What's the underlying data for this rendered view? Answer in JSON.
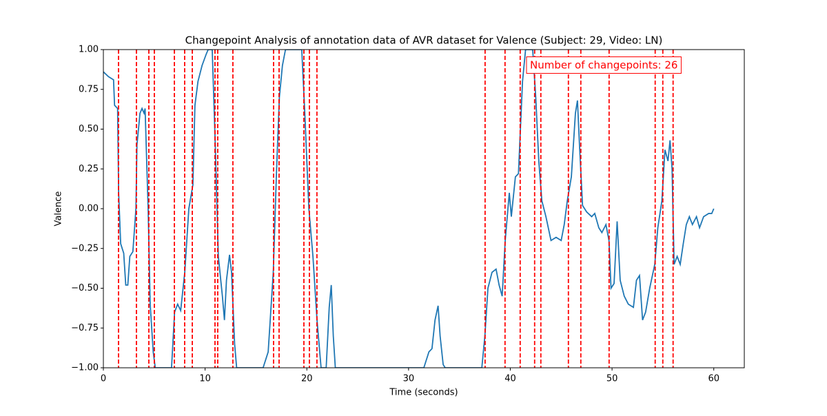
{
  "chart_data": {
    "type": "line",
    "title": "Changepoint Analysis of annotation data of AVR dataset for Valence (Subject: 29, Video: LN)",
    "xlabel": "Time (seconds)",
    "ylabel": "Valence",
    "xlim": [
      0,
      63
    ],
    "xticks": [
      0,
      10,
      20,
      30,
      40,
      50,
      60
    ],
    "ylim": [
      -1,
      1
    ],
    "yticks": [
      {
        "value": -1,
        "label": "−1.00"
      },
      {
        "value": -0.75,
        "label": "−0.75"
      },
      {
        "value": -0.5,
        "label": "−0.50"
      },
      {
        "value": -0.25,
        "label": "−0.25"
      },
      {
        "value": 0,
        "label": "0.00"
      },
      {
        "value": 0.25,
        "label": "0.25"
      },
      {
        "value": 0.5,
        "label": "0.50"
      },
      {
        "value": 0.75,
        "label": "0.75"
      },
      {
        "value": 1,
        "label": "1.00"
      }
    ],
    "x": [
      0,
      0.5,
      1.0,
      1.1,
      1.4,
      1.5,
      1.7,
      2.0,
      2.2,
      2.4,
      2.6,
      2.9,
      3.2,
      3.3,
      3.6,
      3.8,
      4.0,
      4.1,
      4.4,
      4.6,
      4.9,
      5.1,
      6.7,
      7.0,
      7.3,
      7.6,
      8.0,
      8.4,
      8.8,
      9.0,
      9.3,
      9.7,
      10.1,
      10.3,
      10.7,
      11.0,
      11.3,
      11.7,
      11.9,
      12.1,
      12.4,
      12.6,
      12.9,
      13.1,
      15.7,
      16.2,
      16.7,
      17.0,
      17.3,
      17.6,
      17.9,
      19.5,
      19.8,
      20.2,
      20.6,
      21.0,
      21.4,
      21.9,
      22.2,
      22.4,
      22.6,
      22.8,
      31.5,
      32.0,
      32.3,
      32.6,
      32.9,
      33.1,
      33.4,
      33.6,
      37.2,
      37.5,
      37.8,
      38.2,
      38.6,
      38.9,
      39.2,
      39.5,
      39.9,
      40.1,
      40.5,
      40.8,
      41.2,
      41.5,
      42.2,
      42.5,
      42.8,
      43.1,
      43.5,
      44.0,
      44.5,
      45.0,
      45.3,
      45.6,
      46.0,
      46.4,
      46.6,
      46.8,
      47.1,
      47.5,
      48.0,
      48.3,
      48.7,
      49.0,
      49.4,
      49.7,
      49.9,
      50.2,
      50.5,
      50.8,
      51.2,
      51.6,
      52.1,
      52.4,
      52.7,
      53.0,
      53.3,
      53.7,
      54.2,
      54.5,
      54.9,
      55.2,
      55.5,
      55.7,
      55.9,
      56.1,
      56.4,
      56.7,
      57.0,
      57.3,
      57.6,
      57.9,
      58.3,
      58.6,
      59.0,
      59.5,
      59.8,
      60.0
    ],
    "series": [
      {
        "color": "#1f77b4",
        "values": [
          0.86,
          0.83,
          0.81,
          0.65,
          0.63,
          0.1,
          -0.22,
          -0.28,
          -0.48,
          -0.48,
          -0.3,
          -0.27,
          0.0,
          0.4,
          0.6,
          0.63,
          0.6,
          0.63,
          0.0,
          -0.6,
          -0.9,
          -1.0,
          -1.0,
          -0.65,
          -0.6,
          -0.64,
          -0.4,
          0.0,
          0.15,
          0.65,
          0.8,
          0.9,
          0.97,
          1.0,
          1.0,
          0.4,
          -0.3,
          -0.55,
          -0.7,
          -0.45,
          -0.29,
          -0.4,
          -0.85,
          -1.0,
          -1.0,
          -0.9,
          -0.4,
          0.2,
          0.7,
          0.9,
          1.0,
          1.0,
          0.6,
          0.0,
          -0.3,
          -0.7,
          -1.0,
          -1.0,
          -0.62,
          -0.48,
          -0.8,
          -1.0,
          -1.0,
          -0.9,
          -0.88,
          -0.7,
          -0.61,
          -0.8,
          -0.98,
          -1.0,
          -1.0,
          -0.8,
          -0.5,
          -0.4,
          -0.38,
          -0.48,
          -0.55,
          -0.2,
          0.1,
          -0.05,
          0.2,
          0.22,
          0.8,
          1.0,
          1.0,
          0.7,
          0.3,
          0.05,
          -0.05,
          -0.2,
          -0.18,
          -0.2,
          -0.1,
          0.05,
          0.2,
          0.6,
          0.68,
          0.4,
          0.02,
          -0.02,
          -0.05,
          -0.03,
          -0.12,
          -0.15,
          -0.1,
          -0.2,
          -0.5,
          -0.47,
          -0.08,
          -0.45,
          -0.55,
          -0.6,
          -0.62,
          -0.45,
          -0.42,
          -0.7,
          -0.65,
          -0.5,
          -0.35,
          -0.12,
          0.05,
          0.37,
          0.3,
          0.43,
          0.25,
          -0.35,
          -0.3,
          -0.35,
          -0.22,
          -0.1,
          -0.05,
          -0.1,
          -0.05,
          -0.12,
          -0.05,
          -0.03,
          -0.03,
          0.0
        ]
      }
    ],
    "changepoints": [
      1.49,
      3.25,
      4.47,
      5.01,
      6.98,
      7.99,
      8.74,
      10.97,
      11.24,
      12.73,
      16.73,
      17.27,
      19.71,
      20.25,
      20.99,
      37.52,
      39.48,
      40.97,
      42.39,
      43.0,
      45.71,
      46.93,
      49.71,
      54.24,
      54.99,
      56.0
    ],
    "changepoint_color": "#ff0000",
    "annotation": "Number of changepoints: 26"
  }
}
